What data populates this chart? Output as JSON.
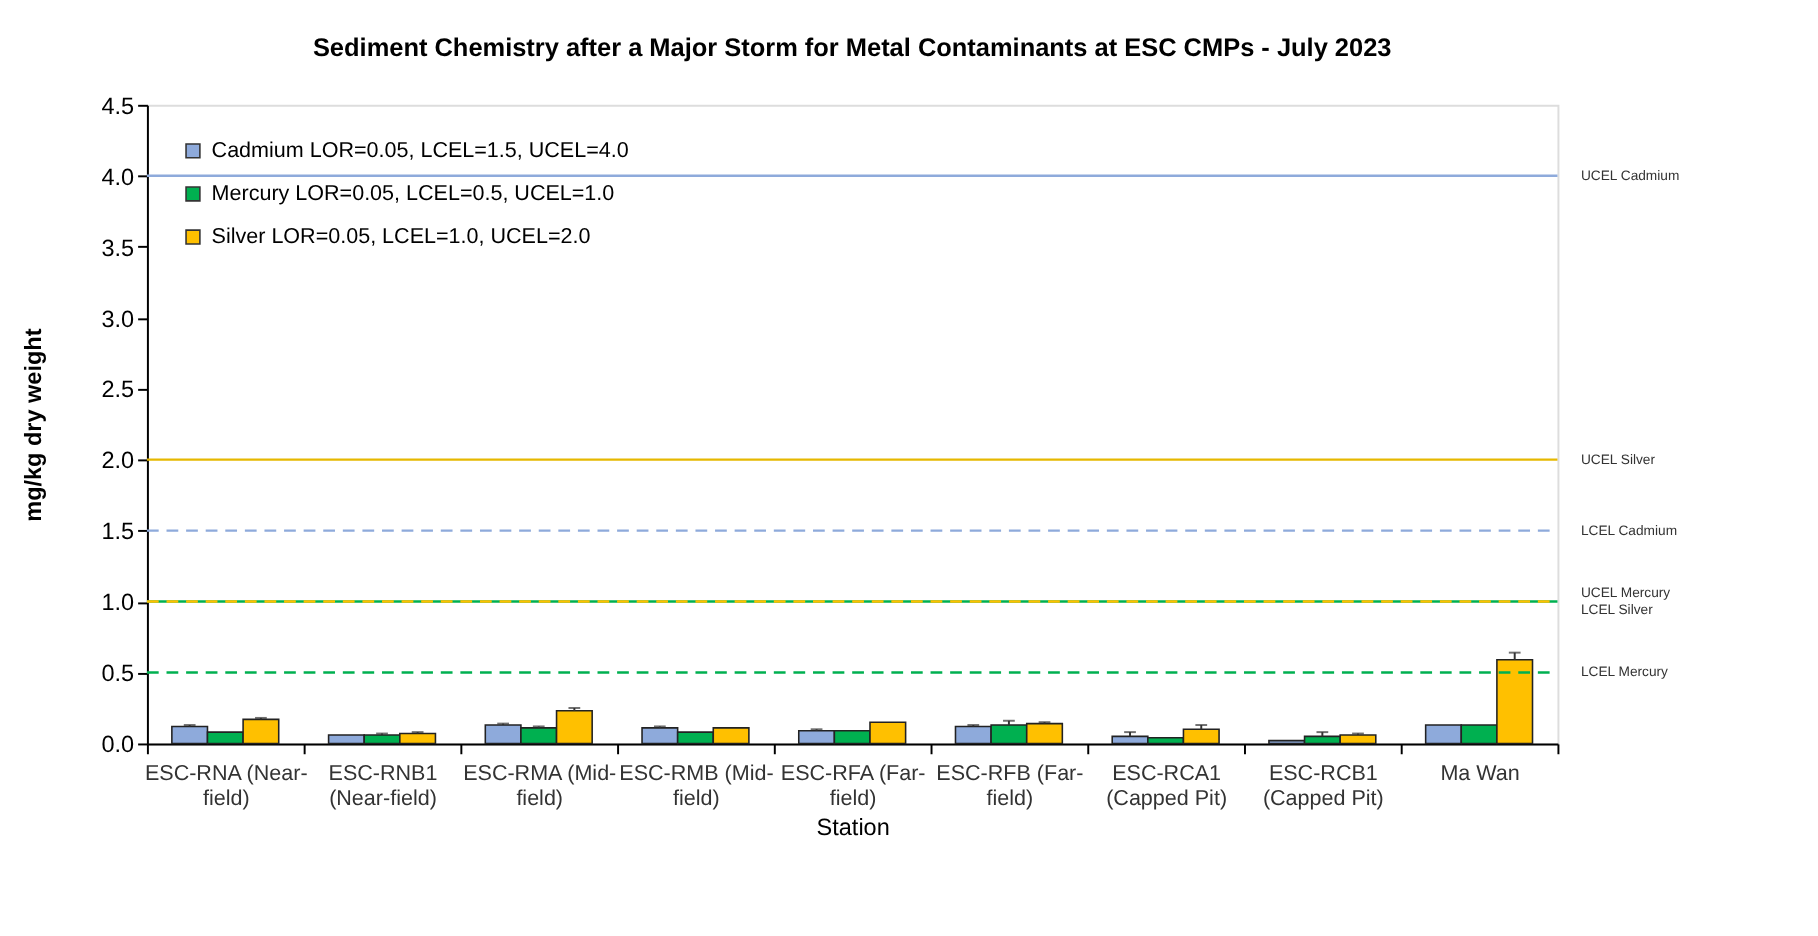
{
  "chart_data": {
    "type": "bar",
    "title": "Sediment Chemistry after a Major Storm for Metal Contaminants at ESC CMPs - July 2023",
    "xlabel": "Station",
    "ylabel": "mg/kg dry weight",
    "categories": [
      "ESC-RNA (Near-\nfield)",
      "ESC-RNB1\n(Near-field)",
      "ESC-RMA (Mid-\nfield)",
      "ESC-RMB (Mid-\nfield)",
      "ESC-RFA (Far-\nfield)",
      "ESC-RFB (Far-\nfield)",
      "ESC-RCA1\n(Capped Pit)",
      "ESC-RCB1\n(Capped Pit)",
      "Ma Wan"
    ],
    "series": [
      {
        "name": "Cadmium LOR=0.05, LCEL=1.5, UCEL=4.0",
        "color": "#8eaadb",
        "values": [
          0.12,
          0.06,
          0.13,
          0.11,
          0.09,
          0.12,
          0.05,
          0.02,
          0.13
        ],
        "errors": [
          [
            0.12,
            0.13
          ],
          null,
          [
            0.13,
            0.14
          ],
          [
            0.11,
            0.12
          ],
          [
            0.09,
            0.1
          ],
          [
            0.12,
            0.13
          ],
          [
            0.05,
            0.08
          ],
          null,
          null
        ]
      },
      {
        "name": "Mercury LOR=0.05, LCEL=0.5, UCEL=1.0",
        "color": "#00b050",
        "values": [
          0.08,
          0.06,
          0.11,
          0.08,
          0.09,
          0.13,
          0.04,
          0.05,
          0.13
        ],
        "errors": [
          null,
          [
            0.06,
            0.07
          ],
          [
            0.11,
            0.12
          ],
          null,
          null,
          [
            0.13,
            0.16
          ],
          null,
          [
            0.05,
            0.08
          ],
          null
        ]
      },
      {
        "name": "Silver LOR=0.05, LCEL=1.0, UCEL=2.0",
        "color": "#ffc000",
        "values": [
          0.17,
          0.07,
          0.23,
          0.11,
          0.15,
          0.14,
          0.1,
          0.06,
          0.59
        ],
        "errors": [
          [
            0.17,
            0.18
          ],
          [
            0.07,
            0.08
          ],
          [
            0.23,
            0.25
          ],
          null,
          null,
          [
            0.14,
            0.15
          ],
          [
            0.1,
            0.13
          ],
          [
            0.06,
            0.07
          ],
          [
            0.59,
            0.64
          ]
        ]
      }
    ],
    "ylim": [
      0,
      4.5
    ],
    "yticks": [
      {
        "value": 0,
        "label": "0.0"
      },
      0.5,
      {
        "value": 1,
        "label": "1.0"
      },
      1.5,
      {
        "value": 2,
        "label": "2.0"
      },
      2.5,
      {
        "value": 3,
        "label": "3.0"
      },
      3.5,
      {
        "value": 4,
        "label": "4.0"
      },
      4.5
    ],
    "ref_lines": [
      {
        "axis": "y",
        "value": 4.0,
        "label": "UCEL Cadmium",
        "color": "#8eaadb",
        "line_style": "solid"
      },
      {
        "axis": "y",
        "value": 2.0,
        "label": "UCEL Silver",
        "color": "#e6b800",
        "line_style": "solid"
      },
      {
        "axis": "y",
        "value": 1.5,
        "label": "LCEL Cadmium",
        "color": "#8eaadb",
        "line_style": "dashed"
      },
      {
        "axis": "y",
        "value": 1.0,
        "label": "UCEL Mercury",
        "color": "#00b050",
        "line_style": "solid"
      },
      {
        "axis": "y",
        "value": 1.0,
        "label": "LCEL Silver",
        "color": "#ffc000",
        "line_style": "dashed"
      },
      {
        "axis": "y",
        "value": 0.5,
        "label": "LCEL Mercury",
        "color": "#00b050",
        "line_style": "dashed"
      }
    ],
    "grid": false,
    "legend": "top left"
  }
}
